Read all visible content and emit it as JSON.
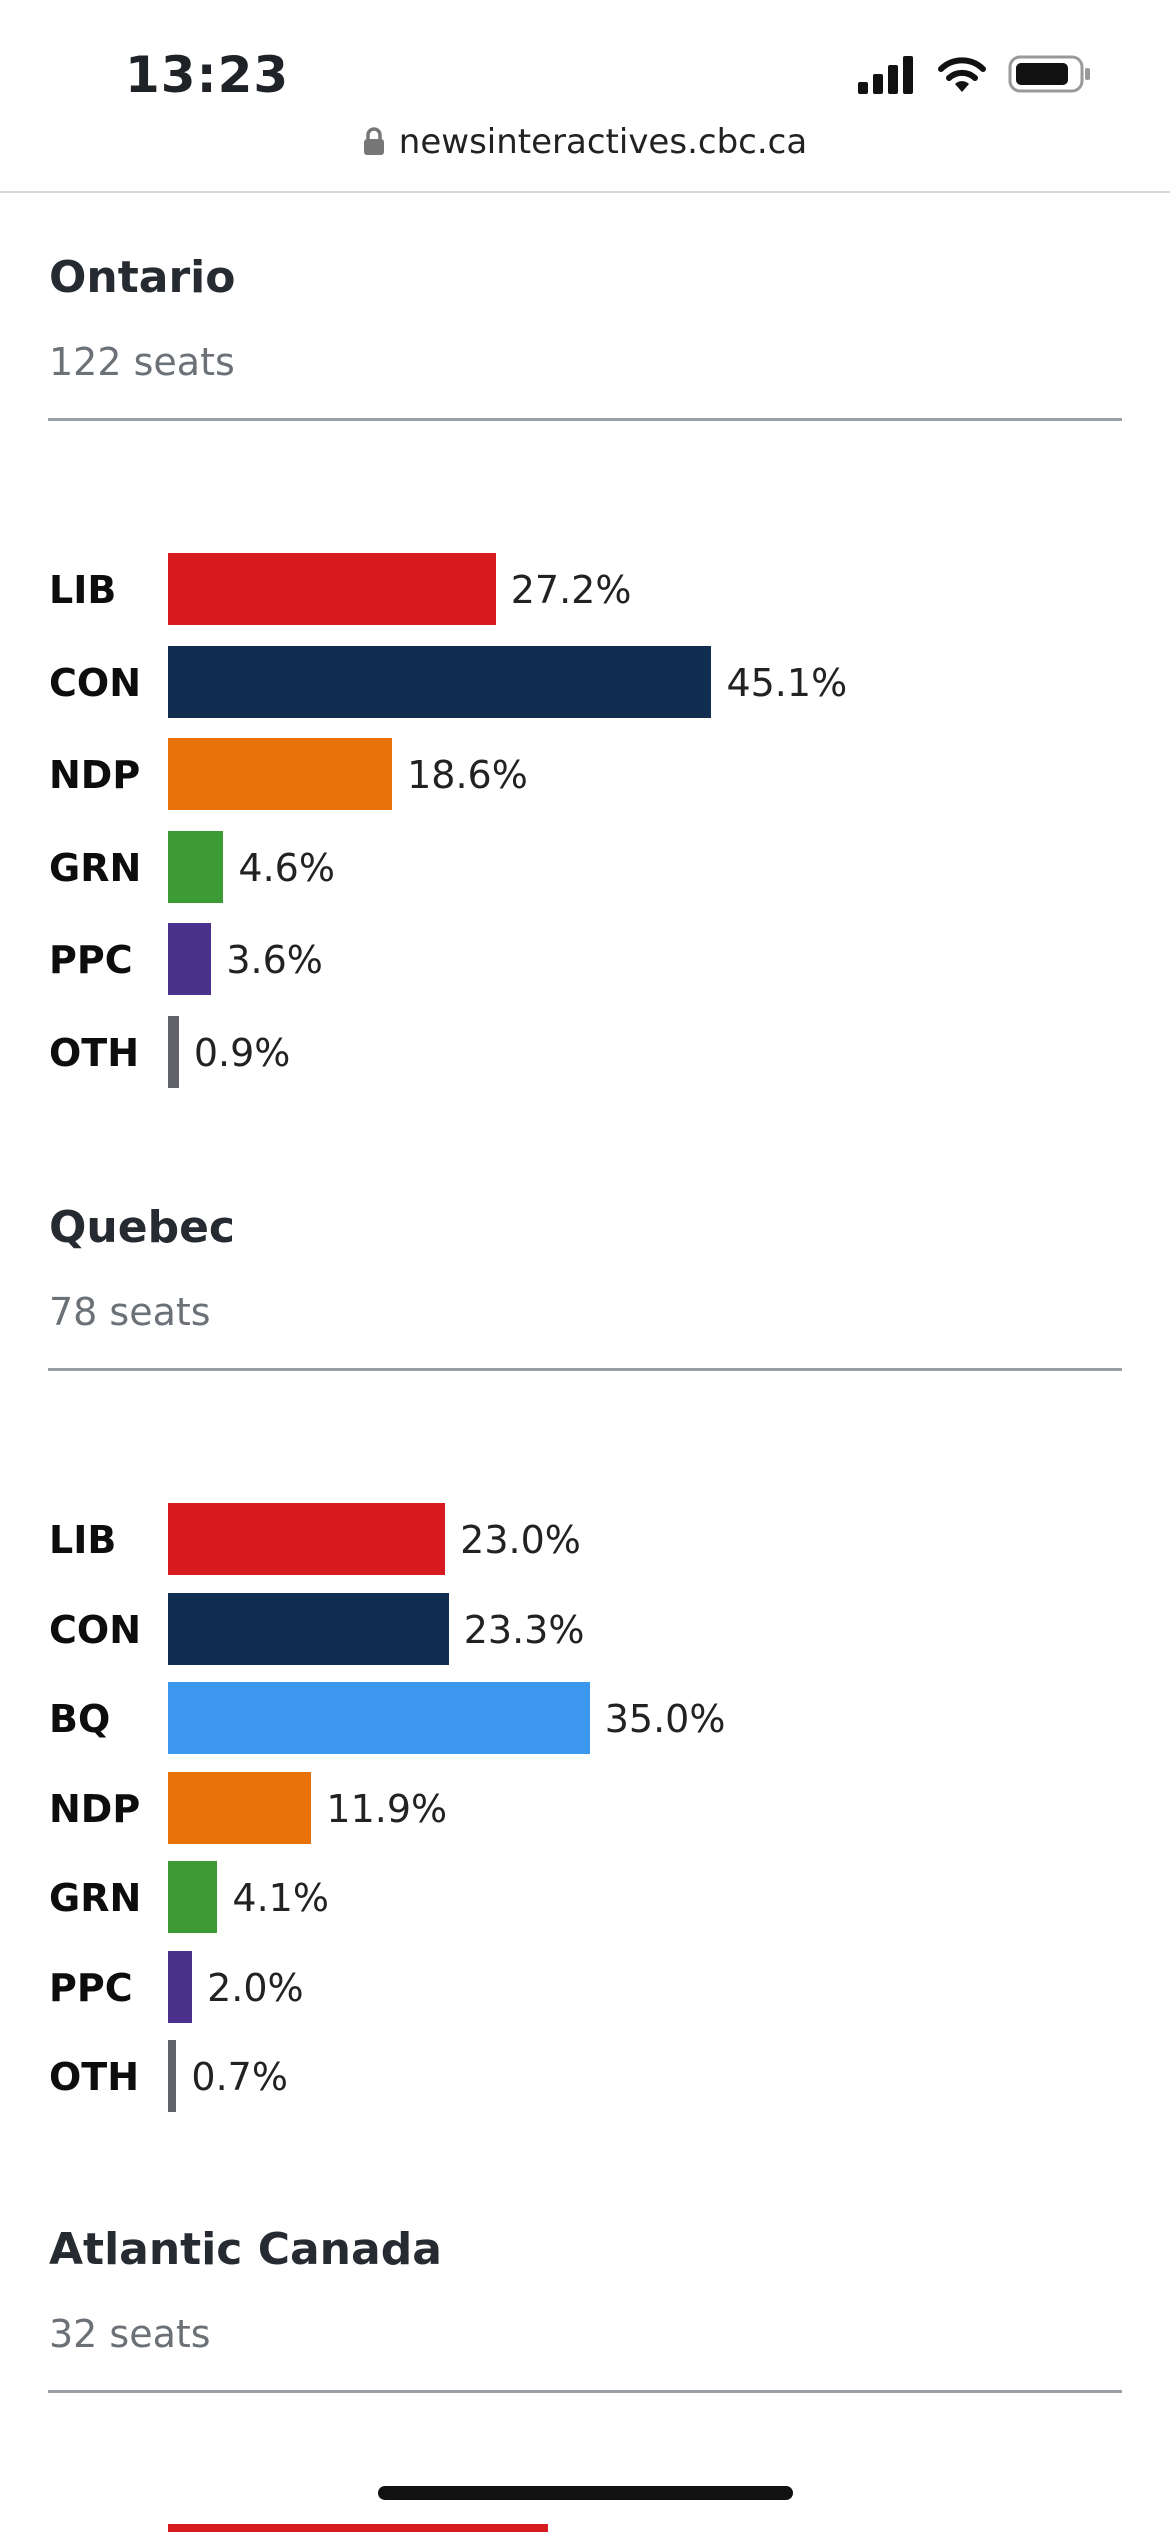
{
  "status_bar": {
    "time": "13:23"
  },
  "browser": {
    "url": "newsinteractives.cbc.ca"
  },
  "colors": {
    "LIB": "#d71920",
    "CON": "#112e51",
    "NDP": "#e8710a",
    "GRN": "#3d9b35",
    "PPC": "#4b318c",
    "OTH": "#5f6368",
    "BQ": "#3b98ee"
  },
  "chart_data": [
    {
      "type": "bar",
      "title": "Ontario",
      "subtitle": "122 seats",
      "categories": [
        "LIB",
        "CON",
        "NDP",
        "GRN",
        "PPC",
        "OTH"
      ],
      "values": [
        27.2,
        45.1,
        18.6,
        4.6,
        3.6,
        0.9
      ],
      "value_labels": [
        "27.2%",
        "45.1%",
        "18.6%",
        "4.6%",
        "3.6%",
        "0.9%"
      ],
      "unit": "%",
      "orientation": "horizontal",
      "grid": false
    },
    {
      "type": "bar",
      "title": "Quebec",
      "subtitle": "78 seats",
      "categories": [
        "LIB",
        "CON",
        "BQ",
        "NDP",
        "GRN",
        "PPC",
        "OTH"
      ],
      "values": [
        23.0,
        23.3,
        35.0,
        11.9,
        4.1,
        2.0,
        0.7
      ],
      "value_labels": [
        "23.0%",
        "23.3%",
        "35.0%",
        "11.9%",
        "4.1%",
        "2.0%",
        "0.7%"
      ],
      "unit": "%",
      "orientation": "horizontal",
      "grid": false
    },
    {
      "type": "bar",
      "title": "Atlantic Canada",
      "subtitle": "32 seats",
      "categories": [],
      "values": [],
      "value_labels": [],
      "unit": "%",
      "orientation": "horizontal",
      "grid": false
    }
  ]
}
